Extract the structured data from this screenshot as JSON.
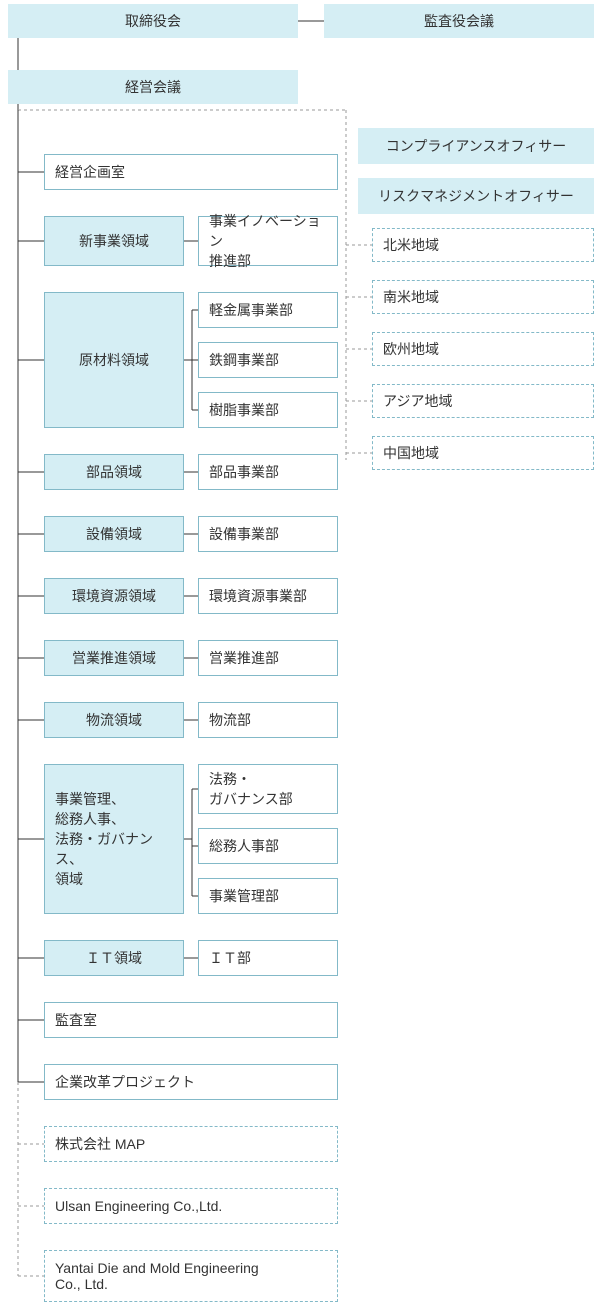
{
  "colors": {
    "header_bg": "#d5eef4",
    "header_border": "#d5eef4",
    "domain_bg": "#d5eef4",
    "domain_border": "#83b9c8",
    "plain_bg": "#ffffff",
    "plain_border": "#83b9c8",
    "officer_bg": "#d5eef4",
    "officer_border": "#d5eef4",
    "region_bg": "#ffffff",
    "region_border": "#83b9c8",
    "solid_line": "#333333",
    "dotted_line": "#999999",
    "text": "#333333",
    "fontsize": 14
  },
  "top": {
    "board_directors": "取締役会",
    "board_auditors": "監査役会議",
    "mgmt_meeting": "経営会議"
  },
  "left_items": [
    {
      "kind": "plain_wide",
      "label": "経営企画室"
    },
    {
      "kind": "domain_depts",
      "domain": "新事業領域",
      "depts": [
        "事業イノベーション\n推進部"
      ]
    },
    {
      "kind": "domain_depts",
      "domain": "原材料領域",
      "depts": [
        "軽金属事業部",
        "鉄鋼事業部",
        "樹脂事業部"
      ]
    },
    {
      "kind": "domain_depts",
      "domain": "部品領域",
      "depts": [
        "部品事業部"
      ]
    },
    {
      "kind": "domain_depts",
      "domain": "設備領域",
      "depts": [
        "設備事業部"
      ]
    },
    {
      "kind": "domain_depts",
      "domain": "環境資源領域",
      "depts": [
        "環境資源事業部"
      ]
    },
    {
      "kind": "domain_depts",
      "domain": "営業推進領域",
      "depts": [
        "営業推進部"
      ]
    },
    {
      "kind": "domain_depts",
      "domain": "物流領域",
      "depts": [
        "物流部"
      ]
    },
    {
      "kind": "domain_depts",
      "domain": "事業管理、\n総務人事、\n法務・ガバナンス、\n領域",
      "depts": [
        "法務・\nガバナンス部",
        "総務人事部",
        "事業管理部"
      ]
    },
    {
      "kind": "domain_depts",
      "domain": "ＩＴ領域",
      "depts": [
        "ＩＴ部"
      ]
    },
    {
      "kind": "plain_wide",
      "label": "監査室"
    },
    {
      "kind": "plain_wide",
      "label": "企業改革プロジェクト"
    },
    {
      "kind": "dashed_wide",
      "label": "株式会社 MAP"
    },
    {
      "kind": "dashed_wide",
      "label": "Ulsan Engineering Co.,Ltd."
    },
    {
      "kind": "dashed_wide",
      "label": "Yantai Die and Mold Engineering\nCo., Ltd."
    }
  ],
  "officers": [
    "コンプライアンスオフィサー",
    "リスクマネジメントオフィサー"
  ],
  "regions": [
    "北米地域",
    "南米地域",
    "欧州地域",
    "アジア地域",
    "中国地域"
  ]
}
